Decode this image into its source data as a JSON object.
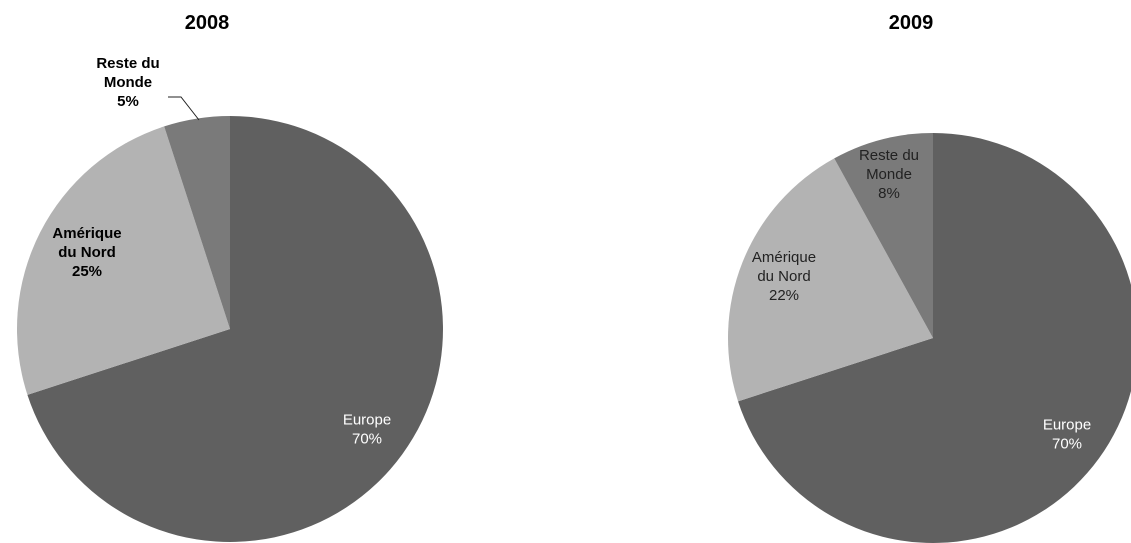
{
  "chart_data": [
    {
      "type": "pie",
      "title": "2008",
      "slices": [
        {
          "label_lines": [
            "Europe"
          ],
          "value": 70,
          "value_label": "70%",
          "color": "#606060"
        },
        {
          "label_lines": [
            "Amérique",
            "du Nord"
          ],
          "value": 25,
          "value_label": "25%",
          "color": "#b3b3b3"
        },
        {
          "label_lines": [
            "Reste du",
            "Monde"
          ],
          "value": 5,
          "value_label": "5%",
          "color": "#7a7a7a"
        }
      ],
      "start": "12 o'clock",
      "direction": "clockwise",
      "legend": "none",
      "label_style": "bold"
    },
    {
      "type": "pie",
      "title": "2009",
      "slices": [
        {
          "label_lines": [
            "Europe"
          ],
          "value": 70,
          "value_label": "70%",
          "color": "#606060"
        },
        {
          "label_lines": [
            "Amérique",
            "du Nord"
          ],
          "value": 22,
          "value_label": "22%",
          "color": "#b3b3b3"
        },
        {
          "label_lines": [
            "Reste du",
            "Monde"
          ],
          "value": 8,
          "value_label": "8%",
          "color": "#7a7a7a"
        }
      ],
      "start": "12 o'clock",
      "direction": "clockwise",
      "legend": "none",
      "label_style": "light"
    }
  ]
}
